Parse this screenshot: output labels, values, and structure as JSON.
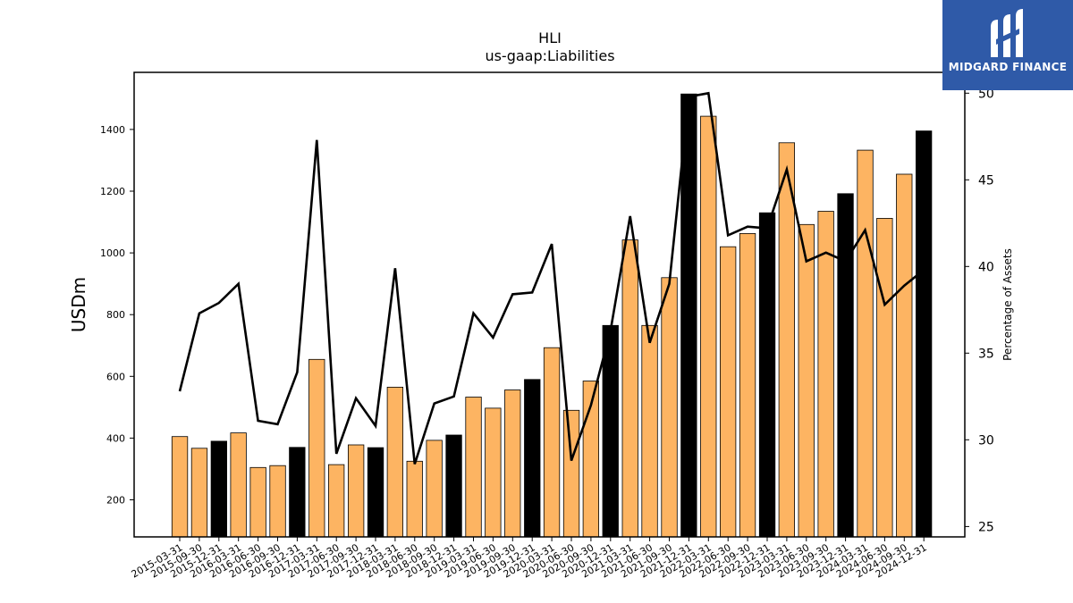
{
  "chart_data": {
    "type": "bar",
    "title": "HLI",
    "subtitle": "us-gaap:Liabilities",
    "ylabel": "USDm",
    "y2label": "Percentage of Assets",
    "ylim": [
      80,
      1585
    ],
    "y2lim": [
      24.4,
      51.2
    ],
    "yticks": [
      200,
      400,
      600,
      800,
      1000,
      1200,
      1400
    ],
    "y2ticks": [
      25,
      30,
      35,
      40,
      45,
      50
    ],
    "categories": [
      "2015-03-31",
      "2015-09-30",
      "2015-12-31",
      "2016-03-31",
      "2016-06-30",
      "2016-09-30",
      "2016-12-31",
      "2017-03-31",
      "2017-06-30",
      "2017-09-30",
      "2017-12-31",
      "2018-03-31",
      "2018-06-30",
      "2018-09-30",
      "2018-12-31",
      "2019-03-31",
      "2019-06-30",
      "2019-09-30",
      "2019-12-31",
      "2020-03-31",
      "2020-06-30",
      "2020-09-30",
      "2020-12-31",
      "2021-03-31",
      "2021-06-30",
      "2021-09-30",
      "2021-12-31",
      "2022-03-31",
      "2022-06-30",
      "2022-09-30",
      "2022-12-31",
      "2023-03-31",
      "2023-06-30",
      "2023-09-30",
      "2023-12-31",
      "2024-03-31",
      "2024-06-30",
      "2024-09-30",
      "2024-12-31"
    ],
    "series": [
      {
        "type": "bar",
        "values": [
          405,
          367,
          390,
          417,
          305,
          311,
          370,
          655,
          314,
          378,
          369,
          565,
          325,
          393,
          410,
          533,
          497,
          556,
          590,
          693,
          490,
          585,
          765,
          1042,
          765,
          920,
          1515,
          1443,
          1020,
          1063,
          1130,
          1357,
          1092,
          1135,
          1192,
          1333,
          1112,
          1255,
          1395
        ],
        "highlight": [
          false,
          false,
          true,
          false,
          false,
          false,
          true,
          false,
          false,
          false,
          true,
          false,
          false,
          false,
          true,
          false,
          false,
          false,
          true,
          false,
          false,
          false,
          true,
          false,
          false,
          false,
          true,
          false,
          false,
          false,
          true,
          false,
          false,
          false,
          true,
          false,
          false,
          false,
          true
        ],
        "color": "#fdb462",
        "highlight_color": "#000000"
      },
      {
        "type": "line",
        "axis": "right",
        "values": [
          32.8,
          37.3,
          37.9,
          39.0,
          31.1,
          30.9,
          33.9,
          47.3,
          29.2,
          32.4,
          30.8,
          39.9,
          28.6,
          32.1,
          32.5,
          37.3,
          35.9,
          38.4,
          38.5,
          41.3,
          28.8,
          32.0,
          36.3,
          42.9,
          35.6,
          39.0,
          49.8,
          50.0,
          41.8,
          42.3,
          42.2,
          45.6,
          40.3,
          40.8,
          40.3,
          42.1,
          37.8,
          38.9,
          39.8
        ],
        "color": "#000000"
      }
    ]
  },
  "logo": {
    "text": "MIDGARD FINANCE"
  }
}
